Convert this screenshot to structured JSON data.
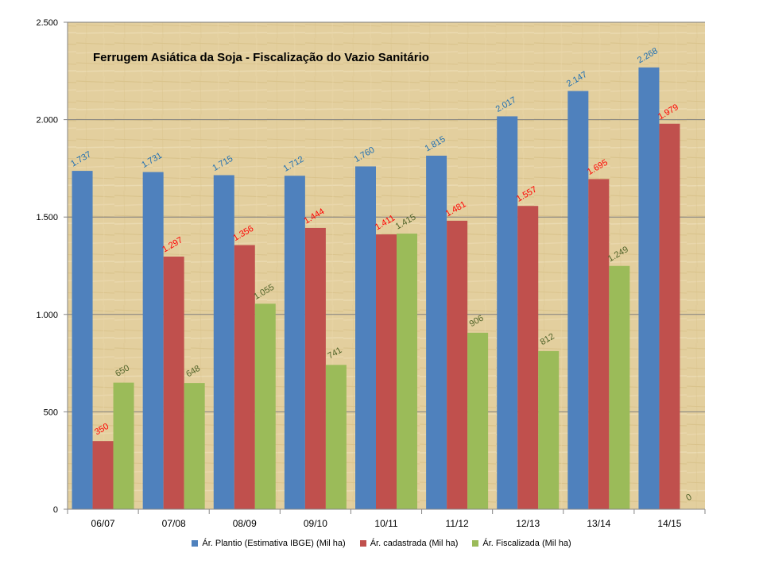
{
  "chart_data": {
    "type": "bar",
    "title": "Ferrugem Asiática da Soja - Fiscalização do Vazio Sanitário",
    "categories": [
      "06/07",
      "07/08",
      "08/09",
      "09/10",
      "10/11",
      "11/12",
      "12/13",
      "13/14",
      "14/15"
    ],
    "series": [
      {
        "name": "Ár. Plantio (Estimativa IBGE) (Mil ha)",
        "color": "#4F81BD",
        "label_color": "#1F6FB2",
        "values": [
          1737,
          1731,
          1715,
          1712,
          1760,
          1815,
          2017,
          2147,
          2268
        ],
        "labels": [
          "1.737",
          "1.731",
          "1.715",
          "1.712",
          "1.760",
          "1.815",
          "2.017",
          "2.147",
          "2.268"
        ]
      },
      {
        "name": "Ár. cadastrada (Mil ha)",
        "color": "#C0504D",
        "label_color": "#FF0000",
        "values": [
          350,
          1297,
          1356,
          1444,
          1411,
          1481,
          1557,
          1695,
          1979
        ],
        "labels": [
          "350",
          "1.297",
          "1.356",
          "1.444",
          "1.411",
          "1.481",
          "1.557",
          "1.695",
          "1.979"
        ]
      },
      {
        "name": "Ár. Fiscalizada (Mil ha)",
        "color": "#9BBB59",
        "label_color": "#4F6228",
        "values": [
          650,
          648,
          1055,
          741,
          1415,
          906,
          812,
          1249,
          0
        ],
        "labels": [
          "650",
          "648",
          "1.055",
          "741",
          "1.415",
          "906",
          "812",
          "1.249",
          "0"
        ]
      }
    ],
    "ylim": [
      0,
      2500
    ],
    "yticks": [
      0,
      500,
      1000,
      1500,
      2000,
      2500
    ],
    "ytick_labels": [
      "0",
      "500",
      "1.000",
      "1.500",
      "2.000",
      "2.500"
    ],
    "grid": true,
    "legend_position": "bottom",
    "colors": {
      "plot_background": "#E3CF9E",
      "gridline": "#7F7F7F"
    }
  }
}
